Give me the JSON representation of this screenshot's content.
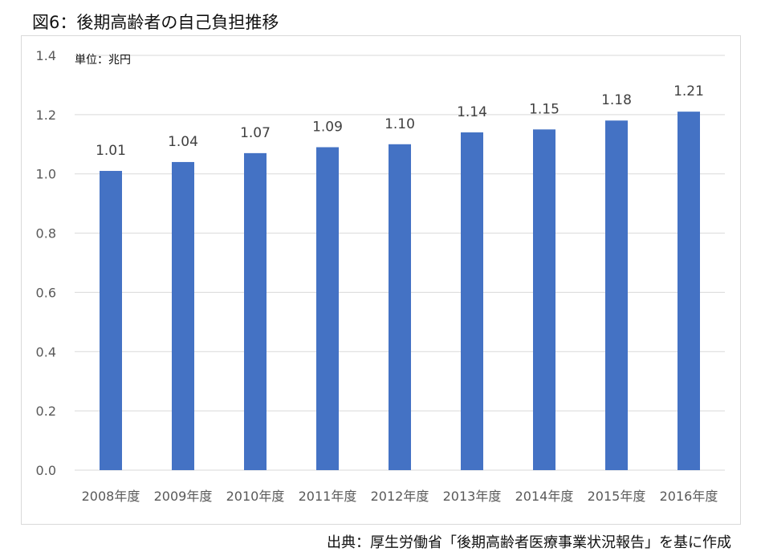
{
  "figure": {
    "title": "図6：後期高齢者の自己負担推移",
    "source": "出典：厚生労働省「後期高齢者医療事業状況報告」を基に作成"
  },
  "colors": {
    "bar": "#4472c4",
    "grid": "#d9d9d9",
    "axis_text": "#595959",
    "label_text": "#404040"
  },
  "chart_data": {
    "type": "bar",
    "unit_label": "単位：兆円",
    "categories": [
      "2008年度",
      "2009年度",
      "2010年度",
      "2011年度",
      "2012年度",
      "2013年度",
      "2014年度",
      "2015年度",
      "2016年度"
    ],
    "values": [
      1.01,
      1.04,
      1.07,
      1.09,
      1.1,
      1.14,
      1.15,
      1.18,
      1.21
    ],
    "value_labels": [
      "1.01",
      "1.04",
      "1.07",
      "1.09",
      "1.10",
      "1.14",
      "1.15",
      "1.18",
      "1.21"
    ],
    "ylim": [
      0,
      1.4
    ],
    "yticks": [
      "0.0",
      "0.2",
      "0.4",
      "0.6",
      "0.8",
      "1.0",
      "1.2",
      "1.4"
    ],
    "grid": true,
    "legend": "none"
  }
}
